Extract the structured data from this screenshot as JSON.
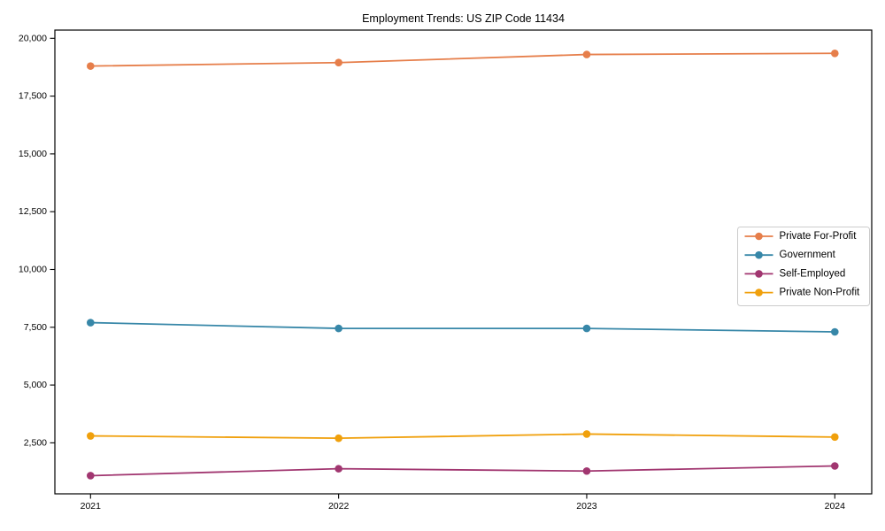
{
  "title": "Employment Trends: US ZIP Code 11434",
  "chart_data": {
    "type": "line",
    "title": "Employment Trends: US ZIP Code 11434",
    "x": [
      2021,
      2022,
      2023,
      2024
    ],
    "xtick_labels": [
      "2021",
      "2022",
      "2023",
      "2024"
    ],
    "yticks": [
      2500,
      5000,
      7500,
      10000,
      12500,
      15000,
      17500,
      20000
    ],
    "ytick_labels": [
      "2,500",
      "5,000",
      "7,500",
      "10,000",
      "12,500",
      "15,000",
      "17,500",
      "20,000"
    ],
    "ylim": [
      294,
      20356
    ],
    "xlabel": "",
    "ylabel": "",
    "grid": false,
    "legend_position": "center-right",
    "series": [
      {
        "name": "Private For-Profit",
        "color": "#E67E4A",
        "values": [
          18800,
          18950,
          19300,
          19350
        ]
      },
      {
        "name": "Government",
        "color": "#3787A8",
        "values": [
          7700,
          7450,
          7450,
          7300
        ]
      },
      {
        "name": "Self-Employed",
        "color": "#A13670",
        "values": [
          1080,
          1380,
          1280,
          1500
        ]
      },
      {
        "name": "Private Non-Profit",
        "color": "#F0A00C",
        "values": [
          2800,
          2700,
          2880,
          2750
        ]
      }
    ],
    "axis_color": "#000000",
    "legend_border_color": "#cccccc",
    "background_color": "#ffffff"
  }
}
